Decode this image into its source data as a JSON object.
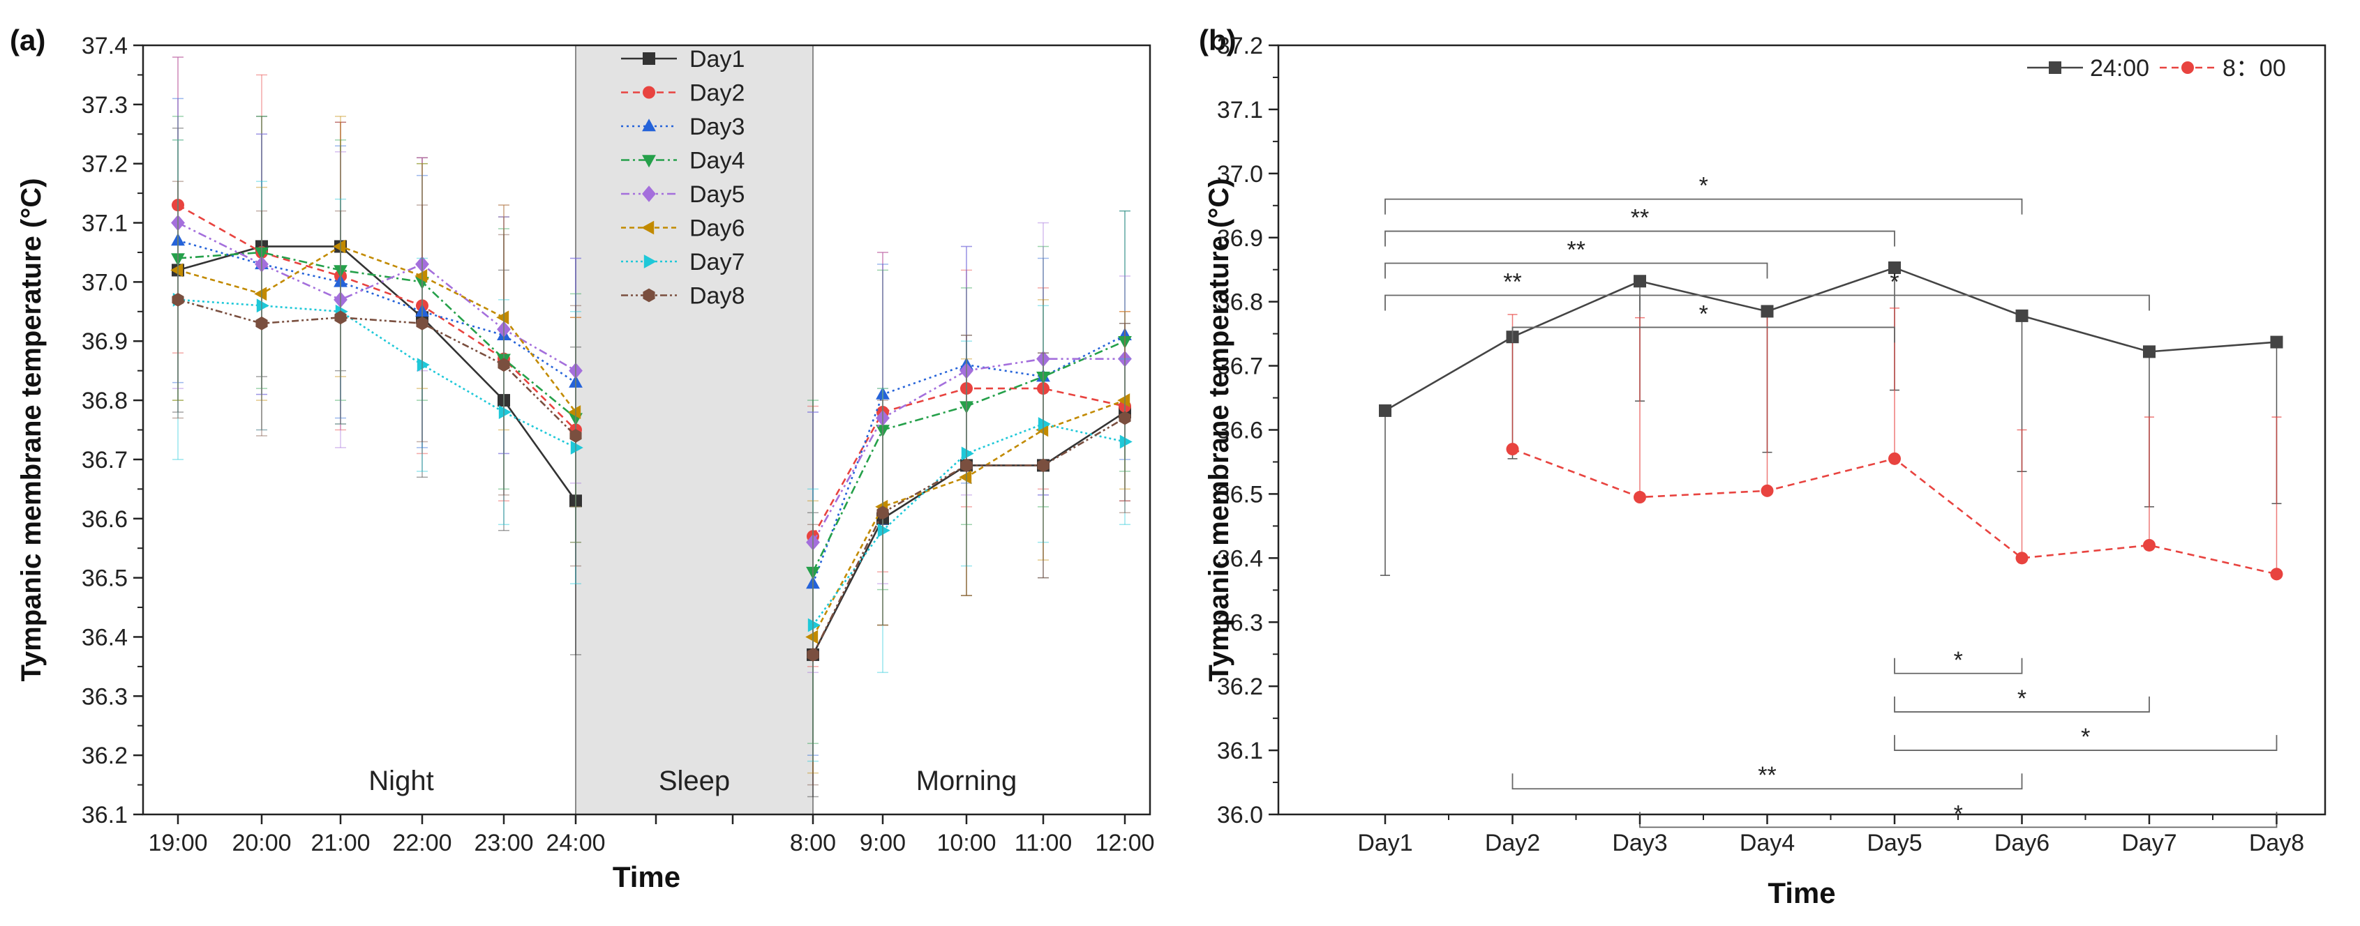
{
  "chart_data": [
    {
      "panel": "(a)",
      "type": "line",
      "ylabel": "Tympanic membrane temperature (°C)",
      "xlabel": "Time",
      "ylim": [
        36.1,
        37.4
      ],
      "yticks": [
        "36.1",
        "36.2",
        "36.3",
        "36.4",
        "36.5",
        "36.6",
        "36.7",
        "36.8",
        "36.9",
        "37.0",
        "37.1",
        "37.2",
        "37.3",
        "37.4"
      ],
      "night_times": [
        "19:00",
        "20:00",
        "21:00",
        "22:00",
        "23:00",
        "24:00"
      ],
      "morning_times": [
        "8:00",
        "9:00",
        "10:00",
        "11:00",
        "12:00"
      ],
      "regions": {
        "night": "Night",
        "sleep": "Sleep",
        "morning": "Morning"
      },
      "series": [
        {
          "name": "Day1",
          "color": "#333333",
          "marker": "square",
          "dash": "solid",
          "night": [
            37.02,
            37.06,
            37.06,
            36.94,
            36.8,
            36.63
          ],
          "morning": [
            36.37,
            36.6,
            36.69,
            36.69,
            36.78
          ],
          "night_err": [
            0.24,
            0.22,
            0.21,
            0.27,
            0.22,
            0.26
          ],
          "morning_err": [
            0.24,
            0.18,
            0.22,
            0.19,
            0.15
          ]
        },
        {
          "name": "Day2",
          "color": "#e8433f",
          "marker": "circle",
          "dash": "10,7",
          "night": [
            37.13,
            37.05,
            37.01,
            36.96,
            36.87,
            36.75
          ],
          "morning": [
            36.57,
            36.78,
            36.82,
            36.82,
            36.79
          ],
          "night_err": [
            0.25,
            0.3,
            0.26,
            0.25,
            0.24,
            0.19
          ],
          "morning_err": [
            0.22,
            0.27,
            0.2,
            0.17,
            0.16
          ]
        },
        {
          "name": "Day3",
          "color": "#2563d9",
          "marker": "triangle-up",
          "dash": "3,5",
          "night": [
            37.07,
            37.03,
            37.0,
            36.95,
            36.91,
            36.83
          ],
          "morning": [
            36.49,
            36.81,
            36.86,
            36.84,
            36.91
          ],
          "night_err": [
            0.24,
            0.22,
            0.23,
            0.23,
            0.2,
            0.21
          ],
          "morning_err": [
            0.29,
            0.22,
            0.2,
            0.2,
            0.21
          ]
        },
        {
          "name": "Day4",
          "color": "#25a04a",
          "marker": "triangle-down",
          "dash": "12,5,3,5",
          "night": [
            37.04,
            37.05,
            37.02,
            37.0,
            36.87,
            36.77
          ],
          "morning": [
            36.51,
            36.75,
            36.79,
            36.84,
            36.9
          ],
          "night_err": [
            0.24,
            0.23,
            0.22,
            0.2,
            0.22,
            0.21
          ],
          "morning_err": [
            0.29,
            0.27,
            0.2,
            0.22,
            0.22
          ]
        },
        {
          "name": "Day5",
          "color": "#a46fdc",
          "marker": "diamond",
          "dash": "12,5,3,5,3,5",
          "night": [
            37.1,
            37.03,
            36.97,
            37.03,
            36.92,
            36.85
          ],
          "morning": [
            36.56,
            36.77,
            36.85,
            36.87,
            36.87
          ],
          "night_err": [
            0.28,
            0.22,
            0.25,
            0.18,
            0.21,
            0.19
          ],
          "morning_err": [
            0.22,
            0.28,
            0.21,
            0.23,
            0.14
          ]
        },
        {
          "name": "Day6",
          "color": "#c28a00",
          "marker": "triangle-left",
          "dash": "7,5",
          "night": [
            37.02,
            36.98,
            37.06,
            37.01,
            36.94,
            36.78
          ],
          "morning": [
            36.4,
            36.62,
            36.67,
            36.75,
            36.8
          ],
          "night_err": [
            0.22,
            0.18,
            0.22,
            0.19,
            0.19,
            0.16
          ],
          "morning_err": [
            0.23,
            0.2,
            0.2,
            0.22,
            0.15
          ]
        },
        {
          "name": "Day7",
          "color": "#1fc8d8",
          "marker": "triangle-right",
          "dash": "3,4",
          "night": [
            36.97,
            36.96,
            36.95,
            36.86,
            36.78,
            36.72
          ],
          "morning": [
            36.42,
            36.58,
            36.71,
            36.76,
            36.73
          ],
          "night_err": [
            0.27,
            0.21,
            0.19,
            0.18,
            0.19,
            0.23
          ],
          "morning_err": [
            0.23,
            0.24,
            0.19,
            0.2,
            0.14
          ]
        },
        {
          "name": "Day8",
          "color": "#7a4f3f",
          "marker": "hexagon",
          "dash": "10,4,3,4,3,4",
          "night": [
            36.97,
            36.93,
            36.94,
            36.93,
            36.86,
            36.74
          ],
          "morning": [
            36.37,
            36.61,
            36.69,
            36.69,
            36.77
          ],
          "night_err": [
            0.2,
            0.19,
            0.18,
            0.2,
            0.22,
            0.22
          ],
          "morning_err": [
            0.22,
            0.19,
            0.22,
            0.19,
            0.16
          ]
        }
      ]
    },
    {
      "panel": "(b)",
      "type": "line",
      "ylabel": "Tympanic membrane temperature (°C)",
      "xlabel": "Time",
      "ylim": [
        36.0,
        37.2
      ],
      "yticks": [
        "36.0",
        "36.1",
        "36.2",
        "36.3",
        "36.4",
        "36.5",
        "36.6",
        "36.7",
        "36.8",
        "36.9",
        "37.0",
        "37.1",
        "37.2"
      ],
      "categories": [
        "Day1",
        "Day2",
        "Day3",
        "Day4",
        "Day5",
        "Day6",
        "Day7",
        "Day8"
      ],
      "series": [
        {
          "name": "24:00",
          "color": "#444444",
          "marker": "square",
          "dash": "solid",
          "values": [
            36.63,
            36.745,
            36.832,
            36.785,
            36.853,
            36.778,
            36.722,
            36.737
          ],
          "lower": [
            36.373,
            36.555,
            36.645,
            36.565,
            36.662,
            36.535,
            36.48,
            36.485
          ]
        },
        {
          "name": "8：00",
          "color": "#e8433f",
          "marker": "circle",
          "dash": "10,7",
          "values": [
            null,
            36.57,
            36.495,
            36.505,
            36.555,
            36.4,
            36.42,
            36.375
          ],
          "upper": [
            null,
            36.78,
            36.775,
            36.78,
            36.79,
            36.6,
            36.62,
            36.62
          ]
        }
      ],
      "significance": [
        {
          "from": "Day1",
          "to": "Day6",
          "level": 36.96,
          "label": "*"
        },
        {
          "from": "Day1",
          "to": "Day5",
          "level": 36.91,
          "label": "**"
        },
        {
          "from": "Day1",
          "to": "Day4",
          "level": 36.86,
          "label": "**"
        },
        {
          "from": "Day1",
          "to": "Day3",
          "level": 36.81,
          "label": "**"
        },
        {
          "from": "Day3",
          "to": "Day7",
          "level": 36.81,
          "label": "*"
        },
        {
          "from": "Day2",
          "to": "Day5",
          "level": 36.76,
          "label": "*"
        },
        {
          "from": "Day5",
          "to": "Day6",
          "level": 36.22,
          "label": "*"
        },
        {
          "from": "Day5",
          "to": "Day7",
          "level": 36.16,
          "label": "*"
        },
        {
          "from": "Day5",
          "to": "Day8",
          "level": 36.1,
          "label": "*"
        },
        {
          "from": "Day2",
          "to": "Day6",
          "level": 36.04,
          "label": "**"
        },
        {
          "from": "Day3",
          "to": "Day8",
          "level": 35.98,
          "label": "*"
        }
      ]
    }
  ]
}
